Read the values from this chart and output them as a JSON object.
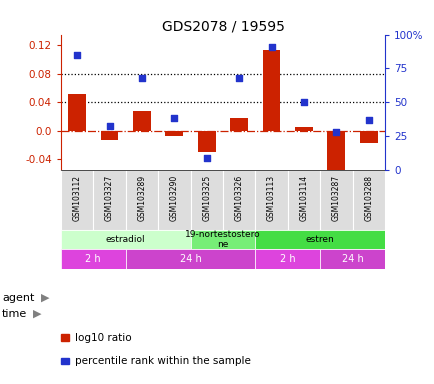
{
  "title": "GDS2078 / 19595",
  "samples": [
    "GSM103112",
    "GSM103327",
    "GSM103289",
    "GSM103290",
    "GSM103325",
    "GSM103326",
    "GSM103113",
    "GSM103114",
    "GSM103287",
    "GSM103288"
  ],
  "log10_ratio": [
    0.052,
    -0.013,
    0.028,
    -0.007,
    -0.03,
    0.018,
    0.113,
    0.005,
    -0.055,
    -0.018
  ],
  "percentile_rank": [
    85,
    32,
    68,
    38,
    9,
    68,
    91,
    50,
    28,
    37
  ],
  "ylim": [
    -0.055,
    0.135
  ],
  "yticks_left": [
    -0.04,
    0.0,
    0.04,
    0.08,
    0.12
  ],
  "yticks_right": [
    0,
    25,
    50,
    75,
    100
  ],
  "bar_color": "#cc2200",
  "dot_color": "#2233cc",
  "hline_color": "#cc2200",
  "hgrid_vals": [
    0.04,
    0.08
  ],
  "agent_groups": [
    {
      "label": "estradiol",
      "start": 0,
      "end": 4,
      "color": "#ccffcc"
    },
    {
      "label": "19-nortestostero\nne",
      "start": 4,
      "end": 6,
      "color": "#77ee77"
    },
    {
      "label": "estren",
      "start": 6,
      "end": 10,
      "color": "#44dd44"
    }
  ],
  "time_groups": [
    {
      "label": "2 h",
      "start": 0,
      "end": 2,
      "color": "#dd44dd"
    },
    {
      "label": "24 h",
      "start": 2,
      "end": 6,
      "color": "#cc44cc"
    },
    {
      "label": "2 h",
      "start": 6,
      "end": 8,
      "color": "#dd44dd"
    },
    {
      "label": "24 h",
      "start": 8,
      "end": 10,
      "color": "#cc44cc"
    }
  ],
  "bg_color": "#ffffff",
  "sample_bg": "#dddddd",
  "time_text_color": "#ffffff",
  "agent_text_color": "#000000"
}
